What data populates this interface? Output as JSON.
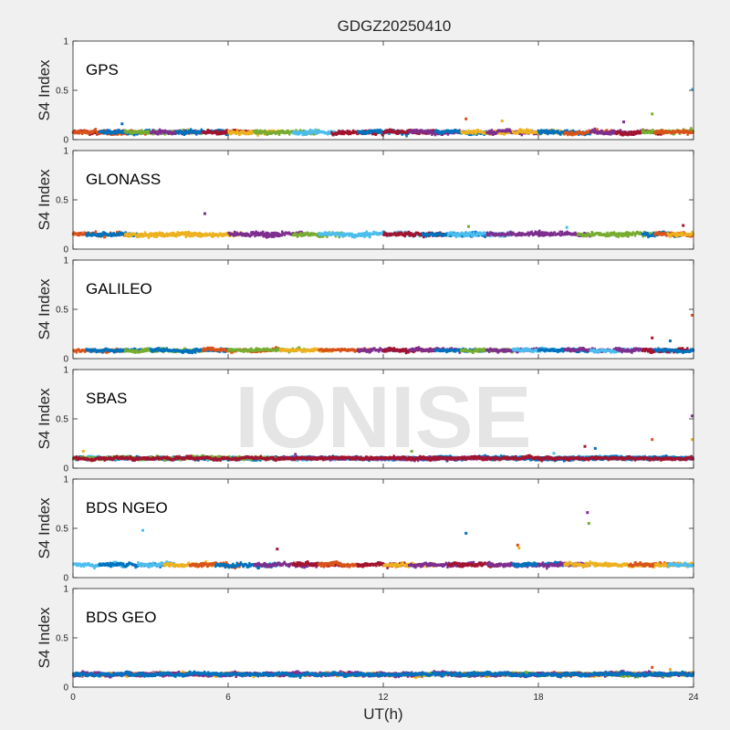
{
  "figure": {
    "title": "GDGZ20250410",
    "watermark": "IONISE",
    "xlabel": "UT(h)",
    "background": "#f0f0f0",
    "axes_background": "#ffffff"
  },
  "chart_data": {
    "type": "scatter",
    "xlim": [
      0,
      24
    ],
    "ylim": [
      0,
      1
    ],
    "xticks": [
      0,
      6,
      12,
      18,
      24
    ],
    "xtick_labels": [
      "0",
      "6",
      "12",
      "18",
      "24"
    ],
    "yticks": [
      0,
      0.5,
      1
    ],
    "ytick_labels": [
      "0",
      "0.5",
      "1"
    ],
    "ylabel": "S4 Index",
    "grid": false,
    "colors": [
      "#0072BD",
      "#D95319",
      "#EDB120",
      "#7E2F8E",
      "#77AC30",
      "#4DBEEE",
      "#A2142F"
    ],
    "panels": [
      {
        "name": "GPS",
        "base": 0.075,
        "spread": 0.045,
        "segments": [
          [
            0,
            2,
            6
          ],
          [
            0,
            3,
            1
          ],
          [
            1,
            4,
            0
          ],
          [
            2,
            5,
            4
          ],
          [
            3,
            5,
            3
          ],
          [
            4,
            6,
            0
          ],
          [
            5,
            7,
            6
          ],
          [
            6,
            8,
            2
          ],
          [
            7,
            9.5,
            4
          ],
          [
            8.5,
            10.5,
            5
          ],
          [
            10,
            12,
            6
          ],
          [
            11,
            13,
            0
          ],
          [
            12,
            14,
            6
          ],
          [
            13,
            15,
            3
          ],
          [
            14,
            16,
            0
          ],
          [
            15,
            17,
            2
          ],
          [
            16,
            18,
            3
          ],
          [
            17,
            19,
            2
          ],
          [
            18,
            20,
            0
          ],
          [
            19,
            21,
            1
          ],
          [
            20,
            22,
            3
          ],
          [
            21,
            23,
            6
          ],
          [
            22,
            24,
            4
          ],
          [
            22.5,
            24,
            1
          ]
        ],
        "outliers": [
          [
            1.9,
            0.16
          ],
          [
            15.2,
            0.21
          ],
          [
            16.6,
            0.19
          ],
          [
            21.3,
            0.18
          ],
          [
            22.4,
            0.26
          ],
          [
            23.95,
            0.51
          ]
        ]
      },
      {
        "name": "GLONASS",
        "base": 0.15,
        "spread": 0.045,
        "segments": [
          [
            0,
            2,
            1
          ],
          [
            0.5,
            2.5,
            0
          ],
          [
            2,
            4,
            2
          ],
          [
            3,
            5,
            2
          ],
          [
            4,
            6.5,
            2
          ],
          [
            6,
            8,
            3
          ],
          [
            7,
            9,
            3
          ],
          [
            8.5,
            10.5,
            4
          ],
          [
            9.5,
            11.5,
            5
          ],
          [
            11,
            13.5,
            5
          ],
          [
            12,
            14.5,
            6
          ],
          [
            13.5,
            16,
            0
          ],
          [
            14.5,
            17,
            5
          ],
          [
            16,
            18.5,
            3
          ],
          [
            18,
            20,
            3
          ],
          [
            19.5,
            21.5,
            4
          ],
          [
            21,
            22.5,
            4
          ],
          [
            22,
            23.5,
            0
          ],
          [
            22.5,
            24,
            1
          ],
          [
            23,
            24,
            2
          ]
        ],
        "outliers": [
          [
            5.1,
            0.36
          ],
          [
            15.3,
            0.23
          ],
          [
            19.1,
            0.22
          ],
          [
            23.6,
            0.24
          ]
        ]
      },
      {
        "name": "GALILEO",
        "base": 0.085,
        "spread": 0.035,
        "segments": [
          [
            0,
            2,
            1
          ],
          [
            0.5,
            3,
            0
          ],
          [
            2,
            5,
            4
          ],
          [
            3,
            6,
            0
          ],
          [
            5,
            8,
            1
          ],
          [
            6,
            9,
            4
          ],
          [
            8,
            10,
            2
          ],
          [
            9.5,
            11.5,
            1
          ],
          [
            11,
            13,
            3
          ],
          [
            12,
            14,
            6
          ],
          [
            13,
            15,
            3
          ],
          [
            14,
            16,
            0
          ],
          [
            15,
            17,
            4
          ],
          [
            16,
            18,
            3
          ],
          [
            17,
            19,
            5
          ],
          [
            18,
            20,
            0
          ],
          [
            19,
            21.5,
            3
          ],
          [
            20,
            22,
            5
          ],
          [
            21,
            23,
            3
          ],
          [
            22,
            24,
            6
          ],
          [
            22.5,
            24,
            0
          ]
        ],
        "outliers": [
          [
            22.4,
            0.21
          ],
          [
            23.1,
            0.18
          ],
          [
            23.95,
            0.44
          ]
        ]
      },
      {
        "name": "SBAS",
        "base": 0.1,
        "spread": 0.03,
        "segments": [
          [
            0,
            24,
            5
          ],
          [
            0,
            24,
            0
          ],
          [
            0,
            8,
            4
          ],
          [
            8,
            16,
            3
          ],
          [
            16,
            24,
            0
          ],
          [
            0,
            24,
            6
          ]
        ],
        "outliers": [
          [
            0.4,
            0.17
          ],
          [
            8.6,
            0.14
          ],
          [
            13.1,
            0.17
          ],
          [
            18.6,
            0.15
          ],
          [
            19.8,
            0.22
          ],
          [
            20.2,
            0.2
          ],
          [
            22.4,
            0.29
          ],
          [
            23.95,
            0.29
          ],
          [
            23.95,
            0.53
          ]
        ]
      },
      {
        "name": "BDS NGEO",
        "base": 0.13,
        "spread": 0.045,
        "segments": [
          [
            0,
            2,
            5
          ],
          [
            1,
            3.5,
            0
          ],
          [
            2.5,
            4,
            5
          ],
          [
            3.5,
            5.5,
            2
          ],
          [
            4.5,
            6.5,
            1
          ],
          [
            5.5,
            8,
            0
          ],
          [
            7,
            9.5,
            3
          ],
          [
            8.5,
            10.5,
            6
          ],
          [
            9.5,
            11.5,
            1
          ],
          [
            11,
            13,
            6
          ],
          [
            12,
            14,
            2
          ],
          [
            13,
            15.5,
            3
          ],
          [
            14.5,
            16.5,
            6
          ],
          [
            16,
            18,
            3
          ],
          [
            17,
            19,
            0
          ],
          [
            18,
            20,
            3
          ],
          [
            19,
            21,
            2
          ],
          [
            20.5,
            22.5,
            2
          ],
          [
            21.5,
            23.5,
            1
          ],
          [
            22.5,
            24,
            2
          ],
          [
            23,
            24,
            5
          ]
        ],
        "outliers": [
          [
            2.7,
            0.48
          ],
          [
            7.9,
            0.29
          ],
          [
            15.2,
            0.45
          ],
          [
            17.2,
            0.33
          ],
          [
            17.25,
            0.3
          ],
          [
            19.9,
            0.66
          ],
          [
            19.95,
            0.55
          ]
        ]
      },
      {
        "name": "BDS GEO",
        "base": 0.13,
        "spread": 0.035,
        "segments": [
          [
            0,
            24,
            3
          ],
          [
            0,
            24,
            2
          ],
          [
            13.5,
            24,
            4
          ],
          [
            14,
            24,
            3
          ],
          [
            0,
            13.5,
            3
          ],
          [
            0,
            24,
            0
          ]
        ],
        "outliers": [
          [
            22.4,
            0.2
          ],
          [
            23.1,
            0.18
          ]
        ]
      }
    ]
  }
}
